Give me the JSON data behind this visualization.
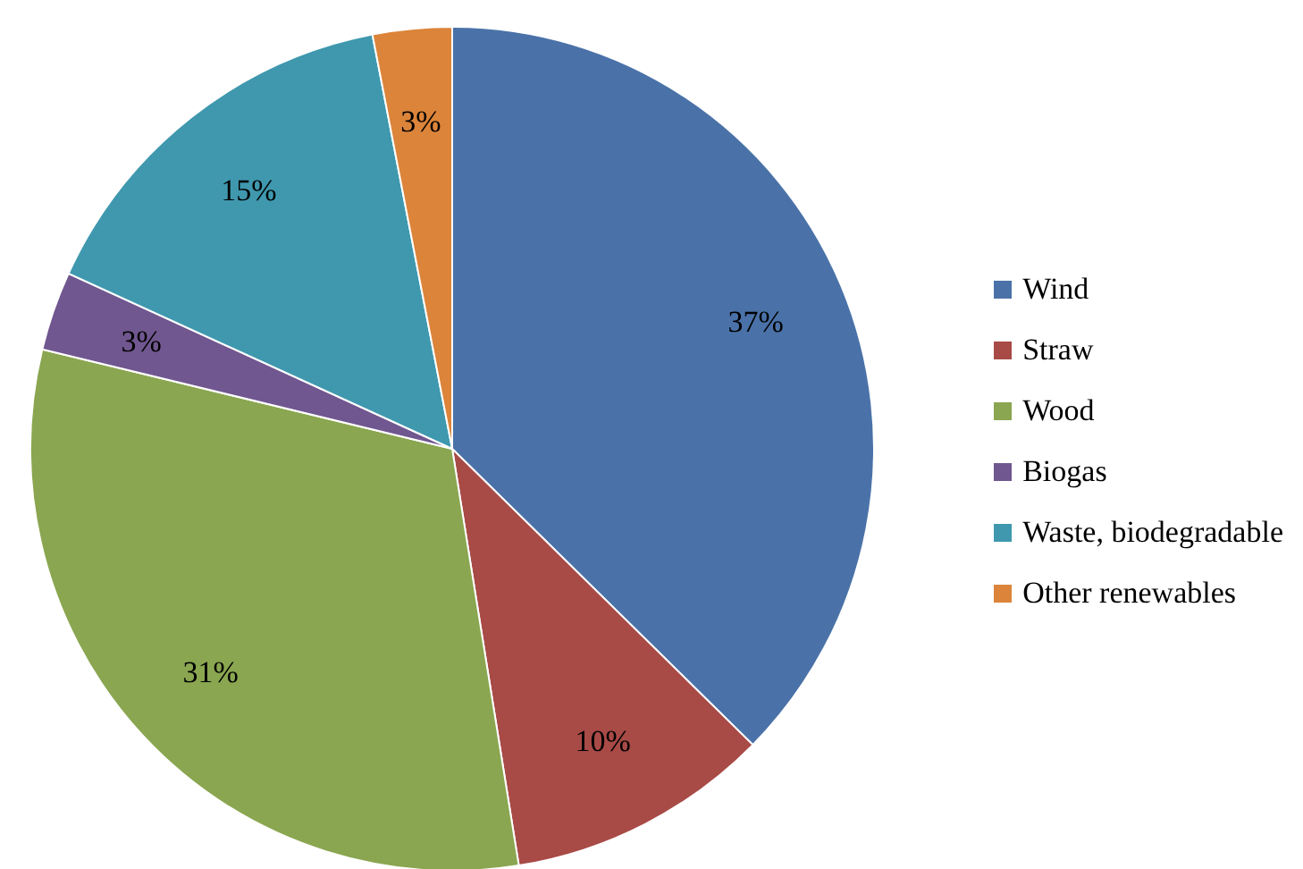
{
  "chart_data": {
    "type": "pie",
    "categories": [
      "Wind",
      "Straw",
      "Wood",
      "Biogas",
      "Waste, biodegradable",
      "Other renewables"
    ],
    "values": [
      37,
      10,
      31,
      3,
      15,
      3
    ],
    "value_labels": [
      "37%",
      "10%",
      "31%",
      "3%",
      "15%",
      "3%"
    ],
    "colors": [
      "#4a72a8",
      "#a84a46",
      "#8aa650",
      "#70578f",
      "#3f98ae",
      "#db843a"
    ],
    "legend": "right"
  }
}
